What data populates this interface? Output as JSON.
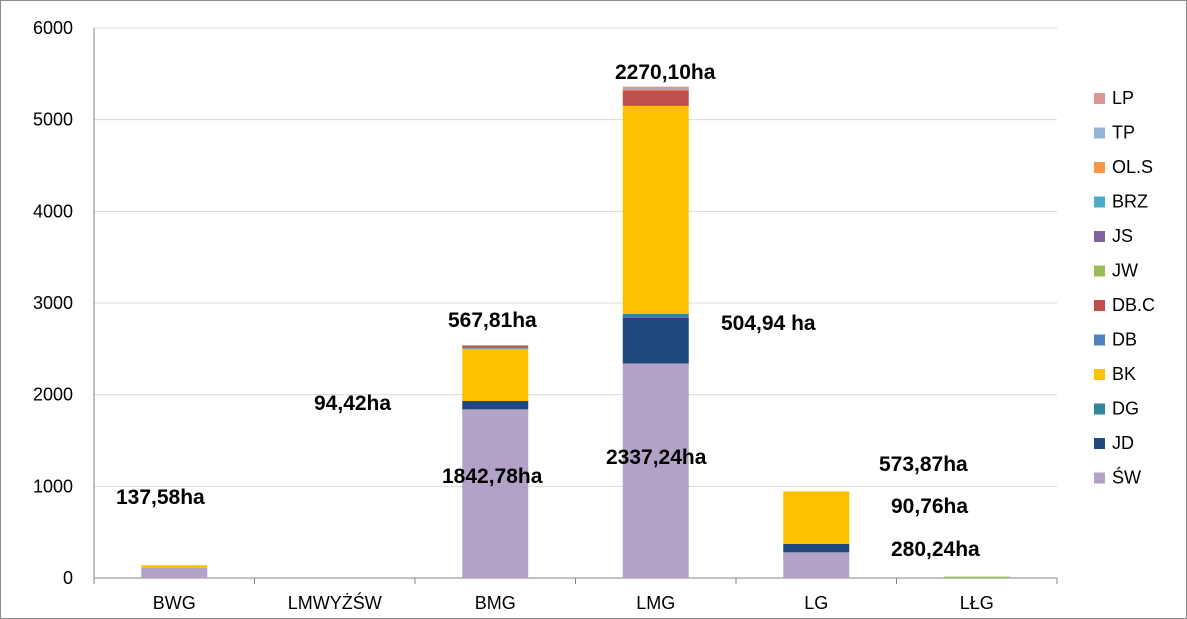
{
  "chart_data": {
    "type": "bar",
    "stacked": true,
    "categories": [
      "BWG",
      "LMWYŻŚW",
      "BMG",
      "LMG",
      "LG",
      "LŁG"
    ],
    "ylim": [
      0,
      6000
    ],
    "yticks": [
      0,
      1000,
      2000,
      3000,
      4000,
      5000,
      6000
    ],
    "grid": true,
    "legend_position": "right",
    "series": [
      {
        "name": "ŚW",
        "color": "#b3a2c7",
        "values": [
          110,
          0,
          1840,
          2340,
          280,
          0
        ]
      },
      {
        "name": "JD",
        "color": "#1f497d",
        "values": [
          0,
          0,
          91,
          500,
          91,
          0
        ]
      },
      {
        "name": "DG",
        "color": "#31859c",
        "values": [
          0,
          0,
          0,
          40,
          0,
          0
        ]
      },
      {
        "name": "BK",
        "color": "#ffc000",
        "values": [
          30,
          0,
          570,
          2270,
          574,
          0
        ]
      },
      {
        "name": "DB",
        "color": "#4f81bd",
        "values": [
          0,
          0,
          10,
          0,
          0,
          0
        ]
      },
      {
        "name": "DB.C",
        "color": "#c0504d",
        "values": [
          0,
          0,
          20,
          170,
          0,
          0
        ]
      },
      {
        "name": "JW",
        "color": "#9bbb59",
        "values": [
          0,
          0,
          0,
          0,
          0,
          15
        ]
      },
      {
        "name": "JS",
        "color": "#8064a2",
        "values": [
          0,
          0,
          0,
          0,
          0,
          0
        ]
      },
      {
        "name": "BRZ",
        "color": "#4bacc6",
        "values": [
          0,
          0,
          0,
          0,
          0,
          0
        ]
      },
      {
        "name": "OL.S",
        "color": "#f79646",
        "values": [
          0,
          0,
          10,
          10,
          0,
          0
        ]
      },
      {
        "name": "TP",
        "color": "#95b3d7",
        "values": [
          0,
          0,
          0,
          10,
          0,
          0
        ]
      },
      {
        "name": "LP",
        "color": "#d99694",
        "values": [
          0,
          0,
          0,
          20,
          0,
          0
        ]
      }
    ],
    "annotations": [
      {
        "text": "137,58ha"
      },
      {
        "text": "94,42ha"
      },
      {
        "text": "567,81ha"
      },
      {
        "text": "1842,78ha"
      },
      {
        "text": "2270,10ha"
      },
      {
        "text": "504,94 ha"
      },
      {
        "text": "2337,24ha"
      },
      {
        "text": "573,87ha"
      },
      {
        "text": "90,76ha"
      },
      {
        "text": "280,24ha"
      }
    ]
  }
}
